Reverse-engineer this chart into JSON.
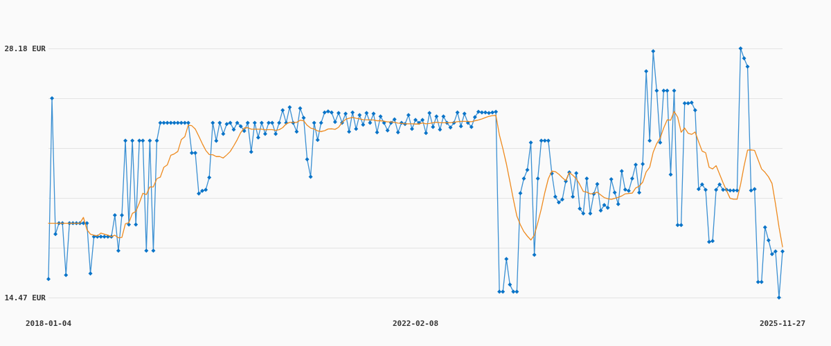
{
  "chart_data": {
    "type": "line",
    "categories": [
      "2018-01-04",
      null,
      null,
      null,
      null,
      null,
      null,
      null,
      null,
      null,
      null,
      null,
      null,
      null,
      null,
      null,
      null,
      null,
      null,
      null,
      null,
      null,
      null,
      null,
      null,
      null,
      null,
      null,
      null,
      null,
      null,
      null,
      null,
      null,
      null,
      null,
      null,
      null,
      null,
      null,
      null,
      null,
      null,
      null,
      null,
      null,
      null,
      null,
      null,
      null,
      null,
      null,
      null,
      null,
      null,
      null,
      null,
      null,
      null,
      null,
      null,
      null,
      null,
      null,
      null,
      null,
      null,
      null,
      null,
      null,
      null,
      null,
      null,
      null,
      null,
      null,
      null,
      null,
      null,
      null,
      null,
      null,
      null,
      null,
      null,
      null,
      null,
      null,
      null,
      null,
      null,
      null,
      null,
      null,
      null,
      null,
      null,
      null,
      null,
      null,
      null,
      null,
      null,
      null,
      null,
      "2022-02-08",
      null,
      null,
      null,
      null,
      null,
      null,
      null,
      null,
      null,
      null,
      null,
      null,
      null,
      null,
      null,
      null,
      null,
      null,
      null,
      null,
      null,
      null,
      null,
      null,
      null,
      null,
      null,
      null,
      null,
      null,
      null,
      null,
      null,
      null,
      null,
      null,
      null,
      null,
      null,
      null,
      null,
      null,
      null,
      null,
      null,
      null,
      null,
      null,
      null,
      null,
      null,
      null,
      null,
      null,
      null,
      null,
      null,
      null,
      null,
      null,
      null,
      null,
      null,
      null,
      null,
      null,
      null,
      null,
      null,
      null,
      null,
      null,
      null,
      null,
      null,
      null,
      null,
      null,
      null,
      null,
      null,
      null,
      null,
      null,
      null,
      null,
      null,
      null,
      null,
      null,
      null,
      null,
      null,
      null,
      null,
      null,
      null,
      null,
      null,
      null,
      null,
      null,
      null,
      null,
      "2025-11-27"
    ],
    "series": [
      {
        "color": "#0a74c8",
        "values": [
          15.49,
          25.44,
          17.96,
          18.56,
          18.56,
          15.71,
          18.56,
          18.56,
          18.56,
          18.56,
          18.56,
          18.56,
          15.79,
          17.82,
          17.82,
          17.82,
          17.82,
          17.82,
          17.82,
          19.0,
          17.05,
          19.0,
          23.11,
          18.49,
          23.11,
          18.49,
          23.11,
          23.11,
          17.05,
          23.11,
          17.05,
          23.11,
          24.09,
          24.09,
          24.09,
          24.09,
          24.09,
          24.09,
          24.09,
          24.09,
          24.09,
          22.43,
          22.43,
          20.19,
          20.34,
          20.4,
          21.08,
          24.09,
          23.1,
          24.09,
          23.48,
          24.02,
          24.09,
          23.71,
          24.09,
          23.9,
          23.64,
          24.09,
          22.49,
          24.09,
          23.28,
          24.09,
          23.48,
          24.09,
          24.09,
          23.48,
          24.09,
          24.78,
          24.09,
          24.94,
          24.09,
          23.6,
          24.89,
          24.36,
          22.08,
          21.12,
          24.09,
          23.14,
          24.09,
          24.66,
          24.71,
          24.66,
          24.13,
          24.63,
          24.09,
          24.59,
          23.6,
          24.66,
          23.75,
          24.51,
          23.98,
          24.63,
          24.09,
          24.59,
          23.56,
          24.44,
          24.09,
          23.67,
          24.09,
          24.28,
          23.56,
          24.09,
          24.02,
          24.51,
          23.75,
          24.25,
          24.09,
          24.25,
          23.52,
          24.63,
          23.86,
          24.44,
          23.71,
          24.44,
          24.09,
          23.83,
          24.09,
          24.66,
          23.9,
          24.59,
          24.09,
          23.86,
          24.4,
          24.7,
          24.66,
          24.66,
          24.63,
          24.66,
          24.7,
          14.79,
          14.79,
          16.59,
          15.18,
          14.79,
          14.79,
          20.21,
          21.02,
          21.5,
          23.0,
          16.82,
          21.02,
          23.11,
          23.11,
          23.11,
          21.3,
          20.02,
          19.71,
          19.87,
          20.87,
          21.36,
          20.02,
          21.32,
          19.36,
          19.1,
          21.02,
          19.1,
          20.17,
          20.72,
          19.26,
          19.56,
          19.41,
          20.98,
          20.25,
          19.61,
          21.43,
          20.41,
          20.34,
          21.02,
          21.78,
          20.25,
          21.82,
          26.92,
          23.11,
          28.03,
          25.86,
          23.0,
          25.86,
          25.86,
          21.24,
          25.86,
          18.46,
          18.46,
          25.16,
          25.16,
          25.2,
          24.78,
          20.44,
          20.7,
          20.4,
          17.54,
          17.58,
          20.4,
          20.7,
          20.4,
          20.4,
          20.36,
          20.36,
          20.36,
          28.18,
          27.64,
          27.18,
          20.36,
          20.44,
          15.33,
          15.33,
          18.34,
          17.62,
          16.86,
          17.01,
          14.47,
          17.01
        ]
      },
      {
        "color": "#ee8a1e",
        "marker": "none",
        "values": [
          18.56,
          18.56,
          18.56,
          18.56,
          18.56,
          18.56,
          18.56,
          18.56,
          18.56,
          18.56,
          18.88,
          18.21,
          17.96,
          17.9,
          17.86,
          18.02,
          17.96,
          17.9,
          17.83,
          17.9,
          17.76,
          17.78,
          18.53,
          18.59,
          19.1,
          19.21,
          19.68,
          20.21,
          20.14,
          20.56,
          20.56,
          21.01,
          21.1,
          21.64,
          21.77,
          22.3,
          22.38,
          22.51,
          23.16,
          23.32,
          23.96,
          23.93,
          23.74,
          23.35,
          22.94,
          22.57,
          22.34,
          22.33,
          22.23,
          22.23,
          22.15,
          22.32,
          22.51,
          22.82,
          23.16,
          23.55,
          23.8,
          23.82,
          23.74,
          23.74,
          23.74,
          23.74,
          23.7,
          23.71,
          23.71,
          23.67,
          23.71,
          23.82,
          24.03,
          24.11,
          24.11,
          24.11,
          24.23,
          24.2,
          23.95,
          23.8,
          23.75,
          23.64,
          23.61,
          23.65,
          23.75,
          23.76,
          23.73,
          23.84,
          24.1,
          24.28,
          24.34,
          24.39,
          24.34,
          24.3,
          24.26,
          24.25,
          24.25,
          24.24,
          24.2,
          24.2,
          24.18,
          24.14,
          24.14,
          24.11,
          24.07,
          24.05,
          24.03,
          24.03,
          24.03,
          24.02,
          24.02,
          24.08,
          24.03,
          24.05,
          24.09,
          24.12,
          24.09,
          24.09,
          24.09,
          24.09,
          24.12,
          24.15,
          24.17,
          24.17,
          24.17,
          24.15,
          24.2,
          24.24,
          24.3,
          24.38,
          24.44,
          24.48,
          24.5,
          23.42,
          22.66,
          21.83,
          20.86,
          19.87,
          18.95,
          18.48,
          18.1,
          17.85,
          17.64,
          17.9,
          18.6,
          19.36,
          20.25,
          21.01,
          21.43,
          21.4,
          21.26,
          21.07,
          20.91,
          21.35,
          21.2,
          21.01,
          20.69,
          20.31,
          20.27,
          20.18,
          20.2,
          20.27,
          20.12,
          19.97,
          19.91,
          19.87,
          19.93,
          19.99,
          20.06,
          20.18,
          20.2,
          20.22,
          20.5,
          20.6,
          20.82,
          21.39,
          21.64,
          22.47,
          22.94,
          23.25,
          23.8,
          24.25,
          24.23,
          24.71,
          24.4,
          23.57,
          23.8,
          23.51,
          23.45,
          23.58,
          23.04,
          22.53,
          22.44,
          21.64,
          21.55,
          21.73,
          21.26,
          20.78,
          20.35,
          19.93,
          19.88,
          19.88,
          20.69,
          21.71,
          22.59,
          22.6,
          22.57,
          22.06,
          21.55,
          21.36,
          21.11,
          20.75,
          19.61,
          18.34,
          17.26
        ]
      }
    ],
    "ylim": [
      14.47,
      28.18
    ],
    "yticks": [
      {
        "value": 14.47,
        "label": "14.47 EUR"
      },
      {
        "value": 17.212,
        "label": null
      },
      {
        "value": 19.954,
        "label": null
      },
      {
        "value": 22.696,
        "label": null
      },
      {
        "value": 25.438,
        "label": null
      },
      {
        "value": 28.18,
        "label": "28.18 EUR"
      }
    ],
    "grid": "y",
    "marker": "diamond",
    "line_style": "solid"
  }
}
